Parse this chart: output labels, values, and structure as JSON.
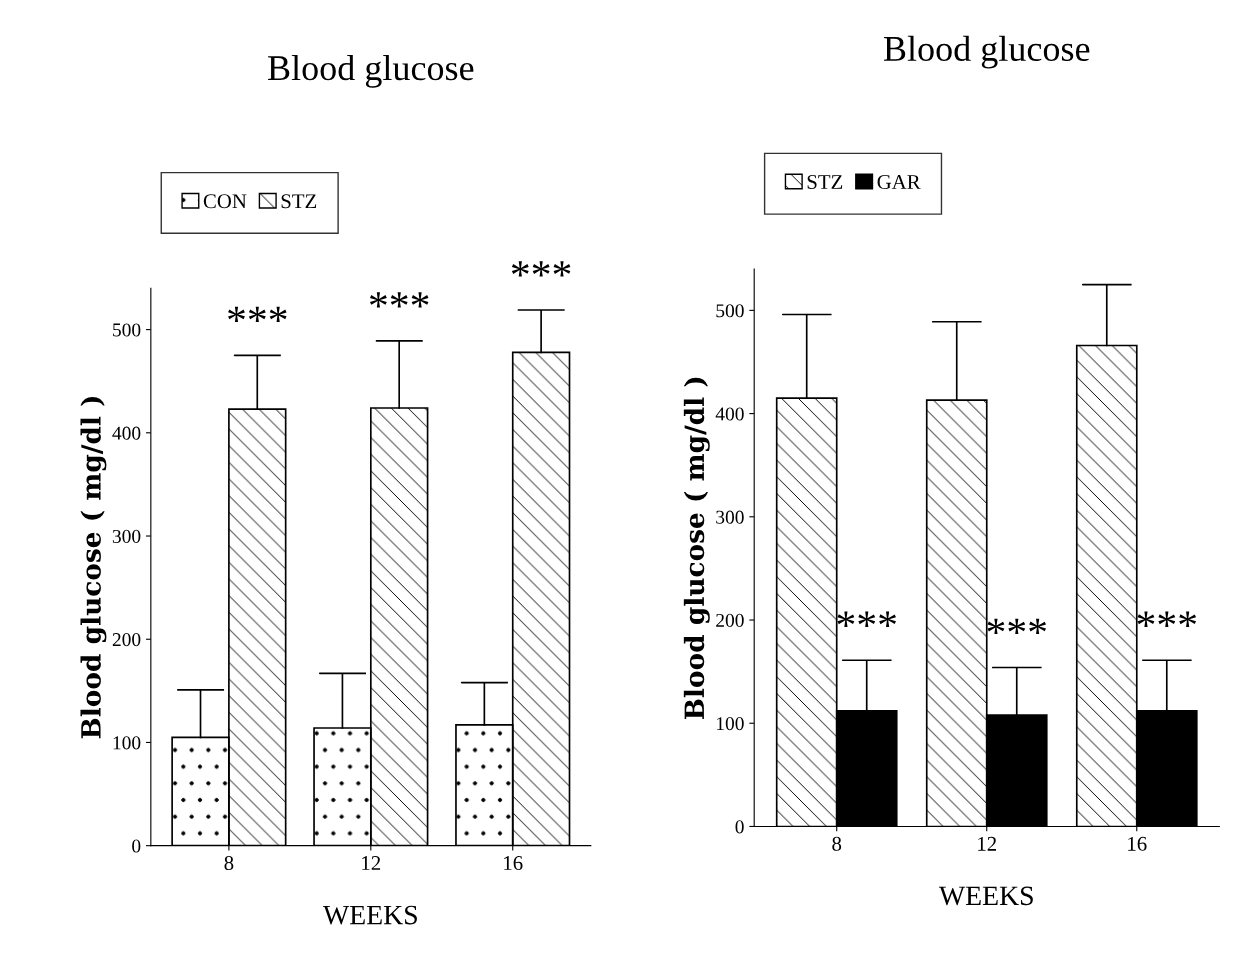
{
  "chart_data": [
    {
      "type": "bar",
      "title": "Blood glucose",
      "xlabel": "WEEKS",
      "ylabel": "Blood glucose ( mg/dl )",
      "categories": [
        "8",
        "12",
        "16"
      ],
      "series": [
        {
          "name": "CON",
          "color": "#ffffff",
          "values": [
            105,
            114,
            117
          ],
          "errors": [
            [
              105,
              151
            ],
            [
              114,
              167
            ],
            [
              117,
              158
            ]
          ]
        },
        {
          "name": "STZ",
          "color": "#ffffff",
          "values": [
            423,
            424,
            478
          ],
          "errors": [
            [
              423,
              475
            ],
            [
              424,
              489
            ],
            [
              478,
              519
            ]
          ]
        }
      ],
      "ylim": [
        0,
        540
      ],
      "yticks": [
        0,
        100,
        200,
        300,
        400,
        500
      ],
      "grid": false,
      "legend": "top left",
      "annotations": [
        "***",
        "***",
        "***"
      ]
    },
    {
      "type": "bar",
      "title": "Blood glucose",
      "xlabel": "WEEKS",
      "ylabel": "Blood glucose ( mg/dl )",
      "categories": [
        "8",
        "12",
        "16"
      ],
      "series": [
        {
          "name": "STZ",
          "color": "#ffffff",
          "values": [
            415,
            413,
            466
          ],
          "errors": [
            [
              415,
              496
            ],
            [
              413,
              489
            ],
            [
              466,
              525
            ]
          ]
        },
        {
          "name": "GAR",
          "color": "#000000",
          "values": [
            112,
            108,
            112
          ],
          "errors": [
            [
              112,
              161
            ],
            [
              108,
              154
            ],
            [
              112,
              161
            ]
          ]
        }
      ],
      "ylim": [
        0,
        540
      ],
      "yticks": [
        0,
        100,
        200,
        300,
        400,
        500
      ],
      "grid": false,
      "legend": "top left",
      "annotations": [
        "***",
        "***",
        "***"
      ]
    }
  ]
}
